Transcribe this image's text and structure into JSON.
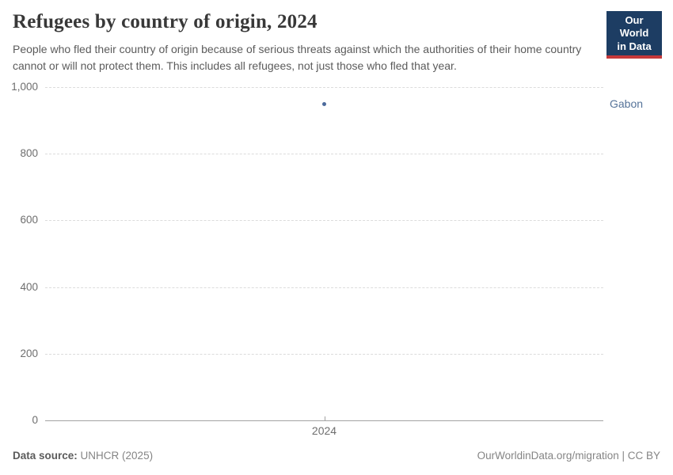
{
  "header": {
    "title": "Refugees by country of origin, 2024",
    "subtitle": "People who fled their country of origin because of serious threats against which the authorities of their home country cannot or will not protect them. This includes all refugees, not just those who fled that year.",
    "logo": {
      "line1": "Our World",
      "line2": "in Data",
      "bg_color": "#1d3d63",
      "stripe_color": "#c5383a"
    }
  },
  "chart_data": {
    "type": "scatter",
    "title": "Refugees by country of origin, 2024",
    "x": [
      2024
    ],
    "series": [
      {
        "name": "Gabon",
        "values": [
          950
        ],
        "color": "#4c6a9c",
        "label_color": "#557399"
      }
    ],
    "xlabel": "",
    "ylabel": "",
    "ylim": [
      0,
      1000
    ],
    "yticks": [
      {
        "value": 0,
        "label": "0"
      },
      {
        "value": 200,
        "label": "200"
      },
      {
        "value": 400,
        "label": "400"
      },
      {
        "value": 600,
        "label": "600"
      },
      {
        "value": 800,
        "label": "800"
      },
      {
        "value": 1000,
        "label": "1,000"
      }
    ],
    "xticks": [
      {
        "value": 2024,
        "label": "2024"
      }
    ],
    "grid": "horizontal-dashed",
    "gridline_color": "#dcdcdc",
    "axis_line_color": "#a3a3a3",
    "legend_position": "right-of-point"
  },
  "footer": {
    "data_source_label": "Data source:",
    "data_source_value": "UNHCR (2025)",
    "credit_link": "OurWorldinData.org/migration",
    "credit_separator": " | ",
    "credit_license": "CC BY"
  }
}
